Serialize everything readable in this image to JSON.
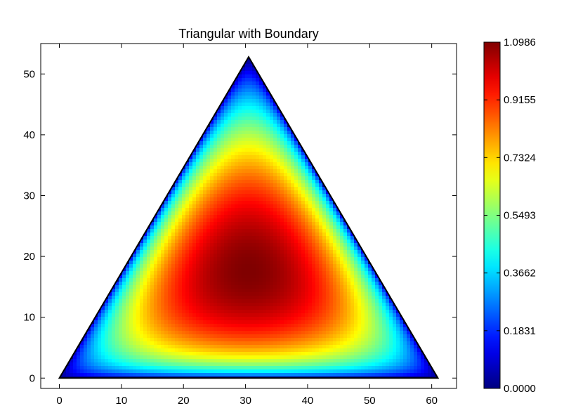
{
  "chart_data": {
    "type": "heatmap",
    "title": "Triangular with Boundary",
    "xlabel": "",
    "ylabel": "",
    "xlim": [
      -3,
      64
    ],
    "ylim": [
      -1.7,
      55
    ],
    "x_ticks": [
      0,
      10,
      20,
      30,
      40,
      50,
      60
    ],
    "y_ticks": [
      0,
      10,
      20,
      30,
      40,
      50
    ],
    "boundary": {
      "vertices": [
        [
          0,
          0
        ],
        [
          30.5,
          52.8
        ],
        [
          61,
          0
        ]
      ]
    },
    "field": {
      "description": "Smooth scalar field over the triangle: maximum near the centroid, minimum (0) at the corners and edges",
      "peak": [
        30.5,
        17.6
      ],
      "max": 1.0986,
      "min": 0.0
    },
    "colormap": "jet",
    "colorbar": {
      "min": 0.0,
      "max": 1.0986,
      "tick_labels": [
        "0.0000",
        "0.1831",
        "0.3662",
        "0.5493",
        "0.7324",
        "0.9155",
        "1.0986"
      ]
    },
    "grid": false,
    "legend": "none"
  }
}
